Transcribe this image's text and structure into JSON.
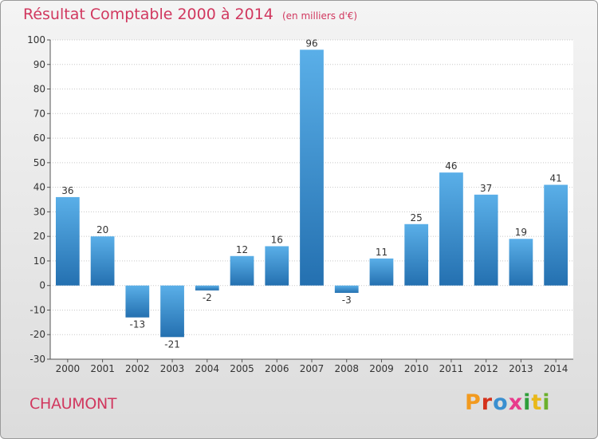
{
  "header": {
    "title": "Résultat Comptable 2000 à 2014",
    "unit_note": "(en milliers d'€)"
  },
  "footer": {
    "commune": "CHAUMONT",
    "logo_text": "Proxiti"
  },
  "colors": {
    "accent": "#d1385f",
    "bar_light": "#5aafe8",
    "bar_dark": "#2470b0",
    "logo_letters": [
      "#f29a1f",
      "#d4321c",
      "#3a8fd0",
      "#e83b8c",
      "#2f9e3a",
      "#e9b81a",
      "#6bb02c"
    ]
  },
  "chart_data": {
    "type": "bar",
    "title": "Résultat Comptable 2000 à 2014",
    "xlabel": "",
    "ylabel": "",
    "ylim": [
      -30,
      100
    ],
    "yticks": [
      -30,
      -20,
      -10,
      0,
      10,
      20,
      30,
      40,
      50,
      60,
      70,
      80,
      90,
      100
    ],
    "grid": true,
    "categories": [
      "2000",
      "2001",
      "2002",
      "2003",
      "2004",
      "2005",
      "2006",
      "2007",
      "2008",
      "2009",
      "2010",
      "2011",
      "2012",
      "2013",
      "2014"
    ],
    "values": [
      36,
      20,
      -13,
      -21,
      -2,
      12,
      16,
      96,
      -3,
      11,
      25,
      46,
      37,
      19,
      41
    ]
  }
}
